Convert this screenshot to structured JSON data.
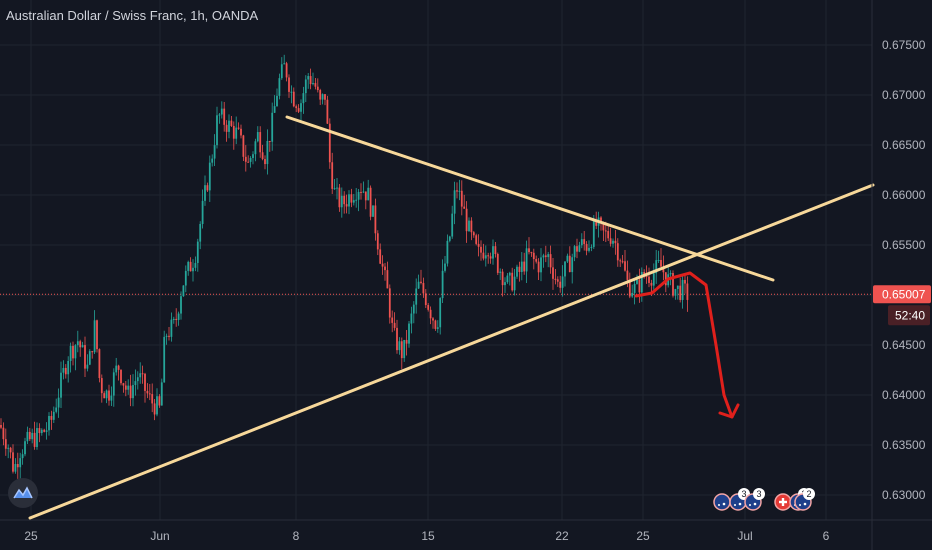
{
  "header": {
    "title": "Australian Dollar / Swiss Franc, 1h, OANDA"
  },
  "colors": {
    "background": "#131722",
    "grid": "#1f2430",
    "up": "#26a69a",
    "down": "#ef5350",
    "trendline": "#f7d89a",
    "forecast": "#e0201c",
    "price_line": "#ef5350",
    "text": "#b2b5be"
  },
  "chart_data": {
    "type": "candlestick",
    "price_labels": [
      "0.67500",
      "0.67000",
      "0.66500",
      "0.66000",
      "0.65500",
      "0.65000",
      "0.64500",
      "0.64000",
      "0.63500",
      "0.63000"
    ],
    "price_values": [
      0.675,
      0.67,
      0.665,
      0.66,
      0.655,
      0.65,
      0.645,
      0.64,
      0.635,
      0.63
    ],
    "date_labels": [
      "25",
      "Jun",
      "8",
      "15",
      "22",
      "25",
      "Jul",
      "6"
    ],
    "ylim": [
      0.6277,
      0.6774
    ],
    "grid": true,
    "current_price": {
      "value": 0.65007,
      "label": "0.65007",
      "countdown": "52:40"
    },
    "price_path": [
      [
        0,
        0.637
      ],
      [
        8,
        0.635
      ],
      [
        14,
        0.6325
      ],
      [
        20,
        0.6345
      ],
      [
        30,
        0.6355
      ],
      [
        40,
        0.636
      ],
      [
        50,
        0.637
      ],
      [
        58,
        0.64
      ],
      [
        68,
        0.644
      ],
      [
        78,
        0.6455
      ],
      [
        88,
        0.6425
      ],
      [
        95,
        0.647
      ],
      [
        100,
        0.641
      ],
      [
        108,
        0.64
      ],
      [
        118,
        0.643
      ],
      [
        128,
        0.64
      ],
      [
        138,
        0.642
      ],
      [
        150,
        0.6395
      ],
      [
        160,
        0.6385
      ],
      [
        165,
        0.646
      ],
      [
        175,
        0.647
      ],
      [
        182,
        0.651
      ],
      [
        195,
        0.654
      ],
      [
        205,
        0.66
      ],
      [
        212,
        0.664
      ],
      [
        218,
        0.668
      ],
      [
        228,
        0.667
      ],
      [
        238,
        0.666
      ],
      [
        248,
        0.663
      ],
      [
        258,
        0.666
      ],
      [
        265,
        0.664
      ],
      [
        272,
        0.667
      ],
      [
        278,
        0.671
      ],
      [
        285,
        0.673
      ],
      [
        292,
        0.67
      ],
      [
        300,
        0.669
      ],
      [
        308,
        0.672
      ],
      [
        315,
        0.671
      ],
      [
        320,
        0.669
      ],
      [
        325,
        0.67
      ],
      [
        330,
        0.663
      ],
      [
        335,
        0.66
      ],
      [
        342,
        0.659
      ],
      [
        350,
        0.66
      ],
      [
        360,
        0.661
      ],
      [
        368,
        0.66
      ],
      [
        375,
        0.657
      ],
      [
        382,
        0.653
      ],
      [
        388,
        0.65
      ],
      [
        393,
        0.646
      ],
      [
        398,
        0.645
      ],
      [
        403,
        0.644
      ],
      [
        410,
        0.647
      ],
      [
        418,
        0.651
      ],
      [
        425,
        0.65
      ],
      [
        432,
        0.648
      ],
      [
        437,
        0.647
      ],
      [
        443,
        0.652
      ],
      [
        450,
        0.656
      ],
      [
        456,
        0.661
      ],
      [
        462,
        0.659
      ],
      [
        470,
        0.656
      ],
      [
        478,
        0.654
      ],
      [
        488,
        0.655
      ],
      [
        498,
        0.653
      ],
      [
        508,
        0.651
      ],
      [
        518,
        0.652
      ],
      [
        528,
        0.654
      ],
      [
        538,
        0.653
      ],
      [
        548,
        0.654
      ],
      [
        558,
        0.651
      ],
      [
        568,
        0.653
      ],
      [
        578,
        0.655
      ],
      [
        588,
        0.655
      ],
      [
        596,
        0.657
      ],
      [
        604,
        0.656
      ],
      [
        612,
        0.656
      ],
      [
        620,
        0.654
      ],
      [
        628,
        0.651
      ],
      [
        636,
        0.6505
      ],
      [
        644,
        0.652
      ],
      [
        652,
        0.652
      ],
      [
        660,
        0.653
      ],
      [
        668,
        0.6515
      ],
      [
        676,
        0.6505
      ],
      [
        682,
        0.6505
      ],
      [
        688,
        0.65
      ]
    ],
    "trendlines": [
      {
        "name": "upper",
        "from": [
          287,
          0.6678
        ],
        "to": [
          773,
          0.6515
        ]
      },
      {
        "name": "lower",
        "from": [
          30,
          0.6277
        ],
        "to": [
          873,
          0.661
        ]
      }
    ],
    "forecast_path": [
      [
        636,
        0.6499
      ],
      [
        652,
        0.6502
      ],
      [
        668,
        0.6516
      ],
      [
        690,
        0.6522
      ],
      [
        706,
        0.651
      ],
      [
        716,
        0.645
      ],
      [
        724,
        0.64
      ],
      [
        732,
        0.6378
      ]
    ]
  }
}
